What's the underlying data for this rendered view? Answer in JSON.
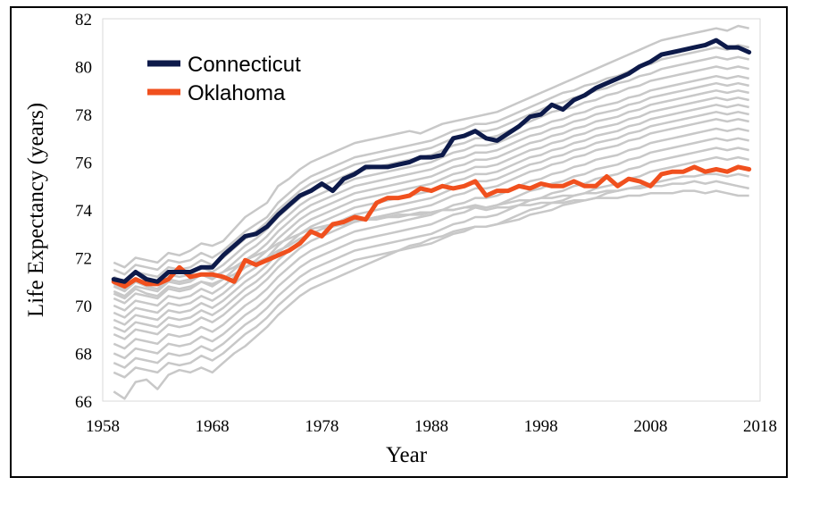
{
  "chart_data": {
    "type": "line",
    "title": "",
    "xlabel": "Year",
    "ylabel": "Life Expectancy (years)",
    "xlim": [
      1958,
      2018
    ],
    "ylim": [
      66,
      82
    ],
    "x_ticks": [
      "1958",
      "1968",
      "1978",
      "1988",
      "1998",
      "2008",
      "2018"
    ],
    "y_ticks": [
      "66",
      "68",
      "70",
      "72",
      "74",
      "76",
      "78",
      "80",
      "82"
    ],
    "grid": false,
    "legend_position": "top-left",
    "colors": {
      "background_states": "#c8c8c8",
      "connecticut": "#0d1a4a",
      "oklahoma": "#f0501e"
    },
    "highlighted": [
      {
        "name": "Connecticut",
        "x": [
          1959,
          1960,
          1961,
          1962,
          1963,
          1964,
          1965,
          1966,
          1967,
          1968,
          1969,
          1970,
          1971,
          1972,
          1973,
          1974,
          1975,
          1976,
          1977,
          1978,
          1979,
          1980,
          1981,
          1982,
          1983,
          1984,
          1985,
          1986,
          1987,
          1988,
          1989,
          1990,
          1991,
          1992,
          1993,
          1994,
          1995,
          1996,
          1997,
          1998,
          1999,
          2000,
          2001,
          2002,
          2003,
          2004,
          2005,
          2006,
          2007,
          2008,
          2009,
          2010,
          2011,
          2012,
          2013,
          2014,
          2015,
          2016,
          2017
        ],
        "values": [
          71.1,
          71.0,
          71.4,
          71.1,
          71.0,
          71.4,
          71.4,
          71.4,
          71.6,
          71.6,
          72.1,
          72.5,
          72.9,
          73.0,
          73.3,
          73.8,
          74.2,
          74.6,
          74.8,
          75.1,
          74.8,
          75.3,
          75.5,
          75.8,
          75.8,
          75.8,
          75.9,
          76.0,
          76.2,
          76.2,
          76.3,
          77.0,
          77.1,
          77.3,
          77.0,
          76.9,
          77.2,
          77.5,
          77.9,
          78.0,
          78.4,
          78.2,
          78.6,
          78.8,
          79.1,
          79.3,
          79.5,
          79.7,
          80.0,
          80.2,
          80.5,
          80.6,
          80.7,
          80.8,
          80.9,
          81.1,
          80.8,
          80.8,
          80.6
        ]
      },
      {
        "name": "Oklahoma",
        "x": [
          1959,
          1960,
          1961,
          1962,
          1963,
          1964,
          1965,
          1966,
          1967,
          1968,
          1969,
          1970,
          1971,
          1972,
          1973,
          1974,
          1975,
          1976,
          1977,
          1978,
          1979,
          1980,
          1981,
          1982,
          1983,
          1984,
          1985,
          1986,
          1987,
          1988,
          1989,
          1990,
          1991,
          1992,
          1993,
          1994,
          1995,
          1996,
          1997,
          1998,
          1999,
          2000,
          2001,
          2002,
          2003,
          2004,
          2005,
          2006,
          2007,
          2008,
          2009,
          2010,
          2011,
          2012,
          2013,
          2014,
          2015,
          2016,
          2017
        ],
        "values": [
          71.0,
          70.8,
          71.1,
          70.9,
          70.9,
          71.1,
          71.6,
          71.2,
          71.3,
          71.3,
          71.2,
          71.0,
          71.9,
          71.7,
          71.9,
          72.1,
          72.3,
          72.6,
          73.1,
          72.9,
          73.4,
          73.5,
          73.7,
          73.6,
          74.3,
          74.5,
          74.5,
          74.6,
          74.9,
          74.8,
          75.0,
          74.9,
          75.0,
          75.2,
          74.6,
          74.8,
          74.8,
          75.0,
          74.9,
          75.1,
          75.0,
          75.0,
          75.2,
          75.0,
          75.0,
          75.4,
          75.0,
          75.3,
          75.2,
          75.0,
          75.5,
          75.6,
          75.6,
          75.8,
          75.6,
          75.7,
          75.6,
          75.8,
          75.7
        ]
      }
    ],
    "background_series": [
      [
        71.8,
        71.6,
        72.0,
        71.9,
        71.8,
        72.2,
        72.1,
        72.3,
        72.6,
        72.5,
        72.7,
        73.2,
        73.7,
        74.0,
        74.3,
        75.0,
        75.3,
        75.7,
        76.0,
        76.2,
        76.4,
        76.6,
        76.8,
        76.9,
        77.0,
        77.1,
        77.2,
        77.3,
        77.2,
        77.4,
        77.6,
        77.7,
        77.8,
        77.9,
        78.0,
        78.1,
        78.3,
        78.5,
        78.7,
        78.9,
        79.1,
        79.3,
        79.5,
        79.7,
        79.9,
        80.1,
        80.3,
        80.5,
        80.7,
        80.9,
        81.1,
        81.2,
        81.3,
        81.4,
        81.5,
        81.6,
        81.5,
        81.7,
        81.6
      ],
      [
        71.5,
        71.3,
        71.7,
        71.6,
        71.5,
        71.9,
        71.8,
        71.9,
        72.2,
        72.0,
        72.3,
        72.7,
        73.1,
        73.4,
        73.7,
        74.3,
        74.7,
        75.1,
        75.4,
        75.6,
        75.8,
        76.0,
        76.2,
        76.3,
        76.4,
        76.5,
        76.6,
        76.7,
        76.8,
        76.9,
        77.1,
        77.3,
        77.4,
        77.6,
        77.6,
        77.7,
        77.9,
        78.1,
        78.3,
        78.5,
        78.7,
        78.9,
        79.0,
        79.2,
        79.3,
        79.5,
        79.6,
        79.8,
        80.0,
        80.1,
        80.3,
        80.4,
        80.5,
        80.6,
        80.7,
        80.8,
        80.7,
        80.9,
        80.8
      ],
      [
        71.2,
        71.0,
        71.4,
        71.3,
        71.2,
        71.6,
        71.5,
        71.6,
        71.9,
        71.7,
        72.0,
        72.4,
        72.8,
        73.1,
        73.5,
        74.0,
        74.4,
        74.8,
        75.1,
        75.3,
        75.5,
        75.7,
        75.9,
        76.0,
        76.1,
        76.2,
        76.3,
        76.4,
        76.5,
        76.6,
        76.8,
        77.0,
        77.1,
        77.3,
        77.3,
        77.4,
        77.6,
        77.8,
        78.0,
        78.2,
        78.4,
        78.5,
        78.7,
        78.8,
        79.0,
        79.1,
        79.3,
        79.4,
        79.6,
        79.7,
        79.9,
        80.0,
        80.1,
        80.2,
        80.3,
        80.4,
        80.3,
        80.4,
        80.3
      ],
      [
        70.9,
        70.7,
        71.1,
        71.0,
        70.9,
        71.3,
        71.2,
        71.3,
        71.6,
        71.4,
        71.7,
        72.1,
        72.5,
        72.8,
        73.2,
        73.7,
        74.1,
        74.5,
        74.8,
        75.0,
        75.2,
        75.4,
        75.6,
        75.7,
        75.8,
        75.9,
        76.0,
        76.1,
        76.2,
        76.3,
        76.5,
        76.7,
        76.8,
        77.0,
        77.0,
        77.1,
        77.3,
        77.5,
        77.7,
        77.9,
        78.1,
        78.2,
        78.3,
        78.5,
        78.6,
        78.8,
        78.9,
        79.1,
        79.2,
        79.4,
        79.5,
        79.6,
        79.7,
        79.8,
        79.9,
        80.0,
        79.9,
        80.0,
        79.9
      ],
      [
        70.6,
        70.4,
        70.8,
        70.7,
        70.6,
        71.0,
        70.9,
        71.0,
        71.3,
        71.1,
        71.4,
        71.8,
        72.2,
        72.5,
        72.9,
        73.4,
        73.8,
        74.2,
        74.5,
        74.7,
        74.9,
        75.1,
        75.3,
        75.4,
        75.5,
        75.6,
        75.7,
        75.8,
        75.9,
        76.0,
        76.2,
        76.4,
        76.5,
        76.7,
        76.7,
        76.8,
        77.0,
        77.2,
        77.4,
        77.5,
        77.7,
        77.8,
        78.0,
        78.1,
        78.3,
        78.4,
        78.5,
        78.7,
        78.8,
        79.0,
        79.1,
        79.2,
        79.3,
        79.4,
        79.5,
        79.6,
        79.5,
        79.6,
        79.5
      ],
      [
        70.3,
        70.1,
        70.5,
        70.4,
        70.3,
        70.7,
        70.6,
        70.7,
        71.0,
        70.8,
        71.1,
        71.5,
        71.9,
        72.2,
        72.6,
        73.1,
        73.5,
        73.9,
        74.2,
        74.4,
        74.6,
        74.8,
        75.0,
        75.1,
        75.2,
        75.3,
        75.4,
        75.5,
        75.6,
        75.7,
        75.9,
        76.1,
        76.2,
        76.4,
        76.4,
        76.5,
        76.7,
        76.9,
        77.1,
        77.2,
        77.4,
        77.5,
        77.7,
        77.8,
        78.0,
        78.1,
        78.2,
        78.4,
        78.5,
        78.7,
        78.8,
        78.9,
        79.0,
        79.1,
        79.2,
        79.3,
        79.2,
        79.3,
        79.2
      ],
      [
        70.0,
        69.8,
        70.2,
        70.1,
        70.0,
        70.4,
        70.3,
        70.4,
        70.7,
        70.5,
        70.8,
        71.2,
        71.6,
        71.9,
        72.3,
        72.8,
        73.2,
        73.6,
        73.9,
        74.1,
        74.3,
        74.5,
        74.7,
        74.8,
        74.9,
        75.0,
        75.1,
        75.2,
        75.3,
        75.4,
        75.6,
        75.8,
        75.9,
        76.1,
        76.1,
        76.2,
        76.4,
        76.6,
        76.8,
        76.9,
        77.1,
        77.2,
        77.4,
        77.5,
        77.7,
        77.8,
        77.9,
        78.1,
        78.2,
        78.4,
        78.5,
        78.6,
        78.7,
        78.8,
        78.9,
        79.0,
        78.9,
        79.0,
        78.9
      ],
      [
        69.7,
        69.5,
        69.9,
        69.8,
        69.7,
        70.1,
        70.0,
        70.1,
        70.4,
        70.2,
        70.5,
        70.9,
        71.3,
        71.6,
        72.0,
        72.5,
        72.9,
        73.3,
        73.6,
        73.8,
        74.0,
        74.2,
        74.4,
        74.5,
        74.6,
        74.7,
        74.8,
        74.9,
        75.0,
        75.1,
        75.3,
        75.5,
        75.6,
        75.8,
        75.8,
        75.9,
        76.1,
        76.3,
        76.5,
        76.6,
        76.8,
        76.9,
        77.1,
        77.2,
        77.4,
        77.5,
        77.6,
        77.8,
        77.9,
        78.1,
        78.2,
        78.3,
        78.4,
        78.5,
        78.6,
        78.7,
        78.6,
        78.7,
        78.6
      ],
      [
        69.4,
        69.2,
        69.6,
        69.5,
        69.4,
        69.8,
        69.7,
        69.8,
        70.1,
        69.9,
        70.2,
        70.6,
        71.0,
        71.3,
        71.7,
        72.2,
        72.6,
        73.0,
        73.3,
        73.5,
        73.7,
        73.9,
        74.1,
        74.2,
        74.3,
        74.4,
        74.5,
        74.6,
        74.7,
        74.8,
        75.0,
        75.2,
        75.3,
        75.5,
        75.5,
        75.6,
        75.8,
        76.0,
        76.2,
        76.3,
        76.5,
        76.6,
        76.8,
        76.9,
        77.1,
        77.2,
        77.3,
        77.5,
        77.6,
        77.8,
        77.9,
        78.0,
        78.1,
        78.2,
        78.3,
        78.4,
        78.3,
        78.4,
        78.3
      ],
      [
        69.1,
        68.9,
        69.3,
        69.2,
        69.1,
        69.5,
        69.4,
        69.5,
        69.8,
        69.6,
        69.9,
        70.3,
        70.7,
        71.0,
        71.4,
        71.9,
        72.3,
        72.7,
        73.0,
        73.2,
        73.4,
        73.6,
        73.8,
        73.9,
        74.0,
        74.1,
        74.2,
        74.3,
        74.4,
        74.5,
        74.7,
        74.9,
        75.0,
        75.2,
        75.2,
        75.3,
        75.5,
        75.7,
        75.9,
        76.0,
        76.2,
        76.3,
        76.5,
        76.6,
        76.8,
        76.9,
        77.0,
        77.2,
        77.3,
        77.5,
        77.6,
        77.7,
        77.8,
        77.9,
        78.0,
        78.1,
        78.0,
        78.1,
        78.0
      ],
      [
        68.8,
        68.6,
        69.0,
        68.9,
        68.8,
        69.2,
        69.1,
        69.2,
        69.5,
        69.3,
        69.6,
        70.0,
        70.4,
        70.7,
        71.1,
        71.6,
        72.0,
        72.4,
        72.7,
        72.9,
        73.1,
        73.3,
        73.5,
        73.6,
        73.7,
        73.8,
        73.9,
        74.0,
        74.1,
        74.2,
        74.4,
        74.6,
        74.7,
        74.9,
        74.9,
        75.0,
        75.2,
        75.4,
        75.6,
        75.7,
        75.9,
        76.0,
        76.2,
        76.3,
        76.5,
        76.6,
        76.7,
        76.9,
        77.0,
        77.2,
        77.3,
        77.4,
        77.5,
        77.6,
        77.7,
        77.8,
        77.7,
        77.8,
        77.7
      ],
      [
        68.4,
        68.2,
        68.6,
        68.5,
        68.4,
        68.8,
        68.7,
        68.8,
        69.1,
        68.9,
        69.2,
        69.6,
        70.0,
        70.3,
        70.7,
        71.2,
        71.6,
        72.0,
        72.3,
        72.5,
        72.7,
        72.9,
        73.1,
        73.2,
        73.3,
        73.4,
        73.5,
        73.6,
        73.7,
        73.8,
        74.0,
        74.2,
        74.3,
        74.5,
        74.5,
        74.6,
        74.8,
        75.0,
        75.2,
        75.3,
        75.5,
        75.6,
        75.8,
        75.9,
        76.1,
        76.2,
        76.3,
        76.5,
        76.6,
        76.8,
        76.9,
        77.0,
        77.1,
        77.2,
        77.3,
        77.4,
        77.3,
        77.4,
        77.3
      ],
      [
        68.0,
        67.8,
        68.2,
        68.1,
        68.0,
        68.4,
        68.3,
        68.4,
        68.7,
        68.5,
        68.8,
        69.2,
        69.6,
        69.9,
        70.3,
        70.8,
        71.2,
        71.6,
        71.9,
        72.1,
        72.3,
        72.5,
        72.7,
        72.8,
        72.9,
        73.0,
        73.1,
        73.2,
        73.3,
        73.4,
        73.6,
        73.8,
        73.9,
        74.1,
        74.1,
        74.2,
        74.4,
        74.6,
        74.8,
        74.9,
        75.1,
        75.2,
        75.4,
        75.5,
        75.7,
        75.8,
        75.9,
        76.1,
        76.2,
        76.4,
        76.5,
        76.6,
        76.7,
        76.8,
        76.9,
        77.0,
        76.9,
        77.0,
        76.9
      ],
      [
        67.6,
        67.4,
        67.8,
        67.7,
        67.6,
        68.0,
        67.9,
        68.0,
        68.3,
        68.1,
        68.4,
        68.8,
        69.2,
        69.5,
        69.9,
        70.4,
        70.8,
        71.2,
        71.5,
        71.7,
        71.9,
        72.1,
        72.3,
        72.4,
        72.5,
        72.6,
        72.7,
        72.8,
        72.9,
        73.0,
        73.2,
        73.4,
        73.5,
        73.7,
        73.7,
        73.8,
        74.0,
        74.2,
        74.4,
        74.5,
        74.7,
        74.8,
        75.0,
        75.1,
        75.3,
        75.4,
        75.5,
        75.7,
        75.8,
        76.0,
        76.1,
        76.2,
        76.3,
        76.4,
        76.5,
        76.6,
        76.5,
        76.6,
        76.5
      ],
      [
        67.2,
        67.0,
        67.4,
        67.3,
        67.2,
        67.6,
        67.5,
        67.6,
        67.9,
        67.7,
        68.0,
        68.4,
        68.8,
        69.1,
        69.5,
        70.0,
        70.4,
        70.8,
        71.1,
        71.3,
        71.5,
        71.7,
        71.9,
        72.0,
        72.1,
        72.2,
        72.3,
        72.4,
        72.5,
        72.6,
        72.8,
        73.0,
        73.1,
        73.3,
        73.3,
        73.4,
        73.6,
        73.8,
        74.0,
        74.1,
        74.3,
        74.4,
        74.6,
        74.7,
        74.9,
        75.0,
        75.1,
        75.3,
        75.4,
        75.6,
        75.7,
        75.8,
        75.9,
        76.0,
        76.1,
        76.2,
        76.1,
        76.2,
        76.1
      ],
      [
        66.4,
        66.1,
        66.8,
        66.9,
        66.5,
        67.1,
        67.3,
        67.2,
        67.4,
        67.2,
        67.6,
        68.0,
        68.3,
        68.7,
        69.1,
        69.6,
        70.0,
        70.4,
        70.7,
        70.9,
        71.1,
        71.3,
        71.5,
        71.7,
        71.9,
        72.1,
        72.3,
        72.5,
        72.6,
        72.8,
        72.9,
        73.1,
        73.2,
        73.3,
        73.3,
        73.4,
        73.5,
        73.6,
        73.8,
        73.9,
        74.0,
        74.2,
        74.3,
        74.4,
        74.5,
        74.7,
        74.8,
        74.9,
        75.0,
        75.1,
        75.2,
        75.3,
        75.4,
        75.4,
        75.5,
        75.5,
        75.4,
        75.5,
        75.4
      ],
      [
        70.5,
        70.3,
        70.7,
        70.5,
        70.4,
        70.8,
        70.7,
        70.8,
        71.0,
        70.9,
        71.1,
        71.3,
        71.6,
        71.8,
        72.0,
        72.3,
        72.5,
        72.8,
        73.0,
        73.2,
        73.3,
        73.4,
        73.5,
        73.6,
        73.6,
        73.7,
        73.7,
        73.8,
        73.8,
        73.9,
        74.0,
        74.0,
        74.1,
        74.2,
        74.1,
        74.2,
        74.3,
        74.4,
        74.4,
        74.5,
        74.5,
        74.6,
        74.6,
        74.7,
        74.7,
        74.8,
        74.8,
        74.9,
        74.9,
        75.0,
        75.0,
        75.1,
        75.1,
        75.2,
        75.1,
        75.2,
        75.1,
        75.0,
        74.9
      ],
      [
        70.8,
        70.6,
        71.0,
        70.8,
        70.7,
        71.1,
        71.0,
        71.1,
        71.3,
        71.2,
        71.4,
        71.6,
        71.9,
        72.1,
        72.3,
        72.6,
        72.8,
        73.0,
        73.2,
        73.3,
        73.4,
        73.5,
        73.6,
        73.6,
        73.7,
        73.7,
        73.8,
        73.8,
        73.9,
        73.9,
        74.0,
        74.0,
        74.1,
        74.1,
        74.0,
        74.1,
        74.1,
        74.2,
        74.2,
        74.3,
        74.3,
        74.3,
        74.4,
        74.4,
        74.5,
        74.5,
        74.5,
        74.6,
        74.6,
        74.7,
        74.7,
        74.7,
        74.8,
        74.8,
        74.7,
        74.8,
        74.7,
        74.6,
        74.6
      ]
    ],
    "legend": [
      "Connecticut",
      "Oklahoma"
    ]
  }
}
